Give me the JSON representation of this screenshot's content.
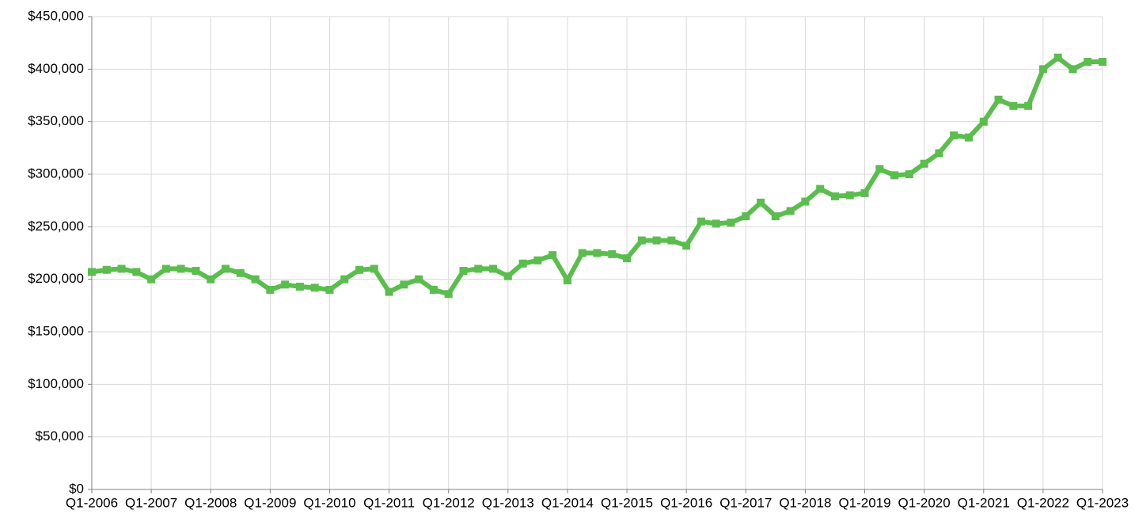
{
  "chart_data": {
    "type": "line",
    "categories": [
      "Q1-2006",
      null,
      null,
      null,
      "Q1-2007",
      null,
      null,
      null,
      "Q1-2008",
      null,
      null,
      null,
      "Q1-2009",
      null,
      null,
      null,
      "Q1-2010",
      null,
      null,
      null,
      "Q1-2011",
      null,
      null,
      null,
      "Q1-2012",
      null,
      null,
      null,
      "Q1-2013",
      null,
      null,
      null,
      "Q1-2014",
      null,
      null,
      null,
      "Q1-2015",
      null,
      null,
      null,
      "Q1-2016",
      null,
      null,
      null,
      "Q1-2017",
      null,
      null,
      null,
      "Q1-2018",
      null,
      null,
      null,
      "Q1-2019",
      null,
      null,
      null,
      "Q1-2020",
      null,
      null,
      null,
      "Q1-2021",
      null,
      null,
      null,
      "Q1-2022",
      null,
      null,
      null,
      "Q1-2023"
    ],
    "series": [
      {
        "name": null,
        "color": "#5bbd4e",
        "values": [
          207000,
          209000,
          210000,
          207000,
          200000,
          210000,
          210000,
          208000,
          200000,
          210000,
          206000,
          200000,
          190000,
          195000,
          193000,
          192000,
          190000,
          200000,
          209000,
          210000,
          188000,
          195000,
          200000,
          190000,
          186000,
          208000,
          210000,
          210000,
          203000,
          215000,
          218000,
          223000,
          199000,
          225000,
          225000,
          224000,
          220000,
          237000,
          237000,
          237000,
          232000,
          255000,
          253000,
          254000,
          260000,
          273000,
          260000,
          265000,
          274000,
          286000,
          279000,
          280000,
          282000,
          305000,
          299000,
          300000,
          310000,
          320000,
          337000,
          335000,
          350000,
          371000,
          365000,
          365000,
          400000,
          411000,
          400000,
          407000,
          407000
        ]
      }
    ],
    "ylim": [
      0,
      450000
    ],
    "yticks": [
      {
        "value": 0,
        "label": "$0"
      },
      {
        "value": 50000,
        "label": "$50,000"
      },
      {
        "value": 100000,
        "label": "$100,000"
      },
      {
        "value": 150000,
        "label": "$150,000"
      },
      {
        "value": 200000,
        "label": "$200,000"
      },
      {
        "value": 250000,
        "label": "$250,000"
      },
      {
        "value": 300000,
        "label": "$300,000"
      },
      {
        "value": 350000,
        "label": "$350,000"
      },
      {
        "value": 400000,
        "label": "$400,000"
      },
      {
        "value": 450000,
        "label": "$450,000"
      }
    ],
    "grid": true
  }
}
